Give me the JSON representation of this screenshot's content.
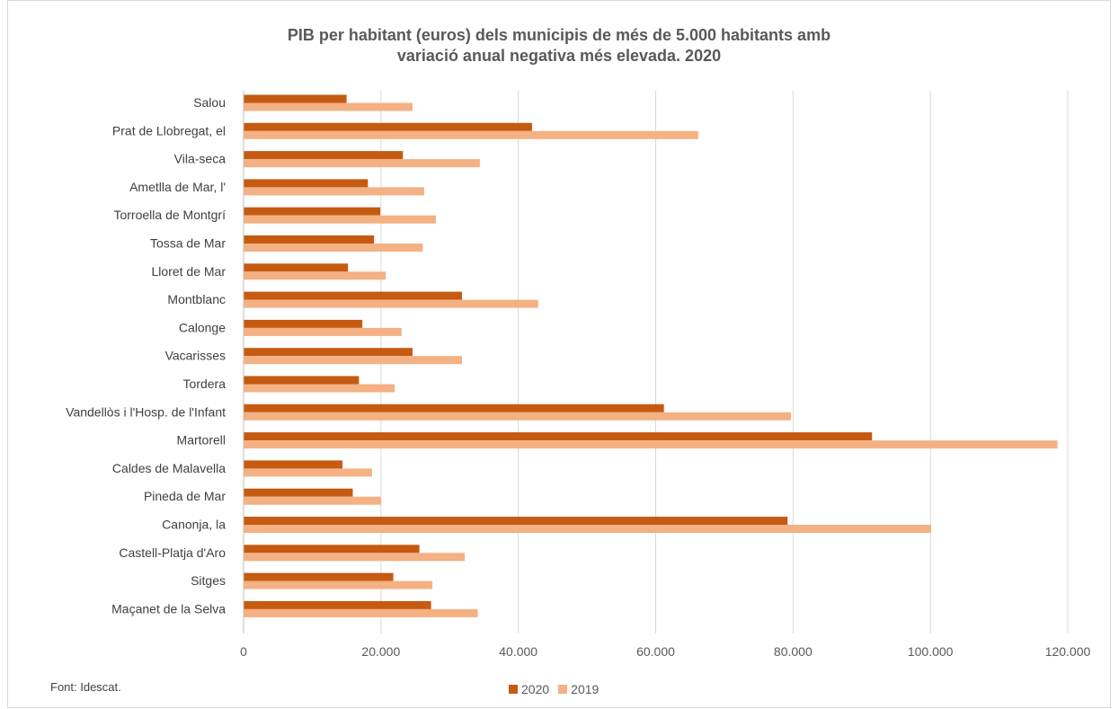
{
  "chart_data": {
    "type": "bar",
    "orientation": "horizontal",
    "title": [
      "PIB per habitant (euros) dels municipis de més de 5.000 habitants amb",
      "variació anual negativa més elevada.  2020"
    ],
    "categories": [
      "Salou",
      "Prat de Llobregat, el",
      "Vila-seca",
      "Ametlla de Mar, l'",
      "Torroella de Montgrí",
      "Tossa de Mar",
      "Lloret de Mar",
      "Montblanc",
      "Calonge",
      "Vacarisses",
      "Tordera",
      "Vandellòs i l'Hosp. de l'Infant",
      "Martorell",
      "Caldes de Malavella",
      "Pineda de Mar",
      "Canonja, la",
      "Castell-Platja d'Aro",
      "Sitges",
      "Maçanet de la Selva"
    ],
    "series": [
      {
        "name": "2020",
        "color": "#c55a11",
        "values": [
          15000,
          42000,
          23200,
          18100,
          19900,
          19000,
          15200,
          31800,
          17300,
          24600,
          16800,
          61200,
          91500,
          14400,
          15900,
          79200,
          25600,
          21800,
          27300
        ]
      },
      {
        "name": "2019",
        "color": "#f4b183",
        "values": [
          24600,
          66200,
          34400,
          26300,
          28000,
          26100,
          20700,
          42900,
          23000,
          31800,
          22000,
          79700,
          118500,
          18700,
          20000,
          100100,
          32200,
          27500,
          34100
        ]
      }
    ],
    "xlim": [
      0,
      120000
    ],
    "xticks": [
      0,
      20000,
      40000,
      60000,
      80000,
      100000,
      120000
    ],
    "xtick_labels": [
      "0",
      "20.000",
      "40.000",
      "60.000",
      "80.000",
      "100.000",
      "120.000"
    ],
    "grid": "vertical",
    "legend_position": "bottom",
    "source": "Font: Idescat."
  }
}
